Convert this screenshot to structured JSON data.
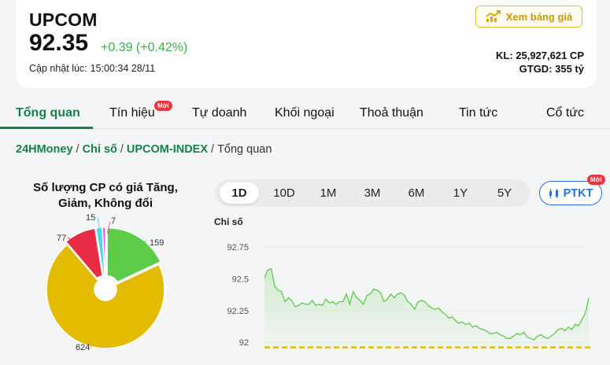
{
  "header": {
    "symbol": "UPCOM",
    "price": "92.35",
    "change": "+0.39 (+0.42%)",
    "updated_label": "Cập nhật lúc:",
    "updated_time": "15:00:34 28/11",
    "price_board_button": "Xem bảng giá",
    "volume": "KL: 25,927,621 CP",
    "value": "GTGD: 355 tỷ"
  },
  "tabs": [
    {
      "label": "Tổng quan",
      "active": true
    },
    {
      "label": "Tín hiệu",
      "badge": "Mới"
    },
    {
      "label": "Tự doanh"
    },
    {
      "label": "Khối ngoại"
    },
    {
      "label": "Thoả thuận"
    },
    {
      "label": "Tin tức"
    },
    {
      "label": "Cổ tức"
    }
  ],
  "breadcrumb": [
    "24HMoney",
    "Chỉ số",
    "UPCOM-INDEX",
    "Tổng quan"
  ],
  "pie": {
    "title": "Số lượng CP có giá Tăng, Giảm, Không đổi",
    "slices": [
      {
        "label": "159",
        "value": 159,
        "color": "#5dcc48"
      },
      {
        "label": "624",
        "value": 624,
        "color": "#e3bb00"
      },
      {
        "label": "77",
        "value": 77,
        "color": "#e82c46"
      },
      {
        "label": "15",
        "value": 15,
        "color": "#4fd6e6"
      },
      {
        "label": "7",
        "value": 7,
        "color": "#e651d3"
      }
    ]
  },
  "range": {
    "options": [
      "1D",
      "10D",
      "1M",
      "3M",
      "6M",
      "1Y",
      "5Y"
    ],
    "selected": "1D"
  },
  "ptkt": {
    "label": "PTKT",
    "badge": "Mới"
  },
  "chart_data": {
    "type": "area",
    "ylabel": "Chỉ số",
    "yticks": [
      "92.75",
      "92.5",
      "92.25",
      "92"
    ],
    "ylim": [
      91.97,
      92.8
    ],
    "reference": 91.96,
    "values": [
      92.51,
      92.57,
      92.58,
      92.44,
      92.41,
      92.4,
      92.32,
      92.35,
      92.33,
      92.28,
      92.29,
      92.31,
      92.3,
      92.3,
      92.33,
      92.29,
      92.3,
      92.29,
      92.34,
      92.31,
      92.32,
      92.3,
      92.32,
      92.32,
      92.38,
      92.3,
      92.4,
      92.35,
      92.33,
      92.3,
      92.37,
      92.38,
      92.42,
      92.41,
      92.39,
      92.32,
      92.34,
      92.38,
      92.35,
      92.38,
      92.39,
      92.37,
      92.32,
      92.3,
      92.26,
      92.32,
      92.33,
      92.32,
      92.29,
      92.27,
      92.26,
      92.27,
      92.24,
      92.22,
      92.19,
      92.2,
      92.17,
      92.15,
      92.16,
      92.14,
      92.15,
      92.12,
      92.13,
      92.11,
      92.1,
      92.09,
      92.07,
      92.07,
      92.08,
      92.06,
      92.05,
      92.03,
      92.03,
      92.05,
      92.07,
      92.06,
      92.08,
      92.04,
      92.03,
      92.02,
      92.05,
      92.06,
      92.04,
      92.03,
      92.05,
      92.07,
      92.1,
      92.11,
      92.09,
      92.12,
      92.1,
      92.14,
      92.13,
      92.18,
      92.23,
      92.35
    ]
  }
}
